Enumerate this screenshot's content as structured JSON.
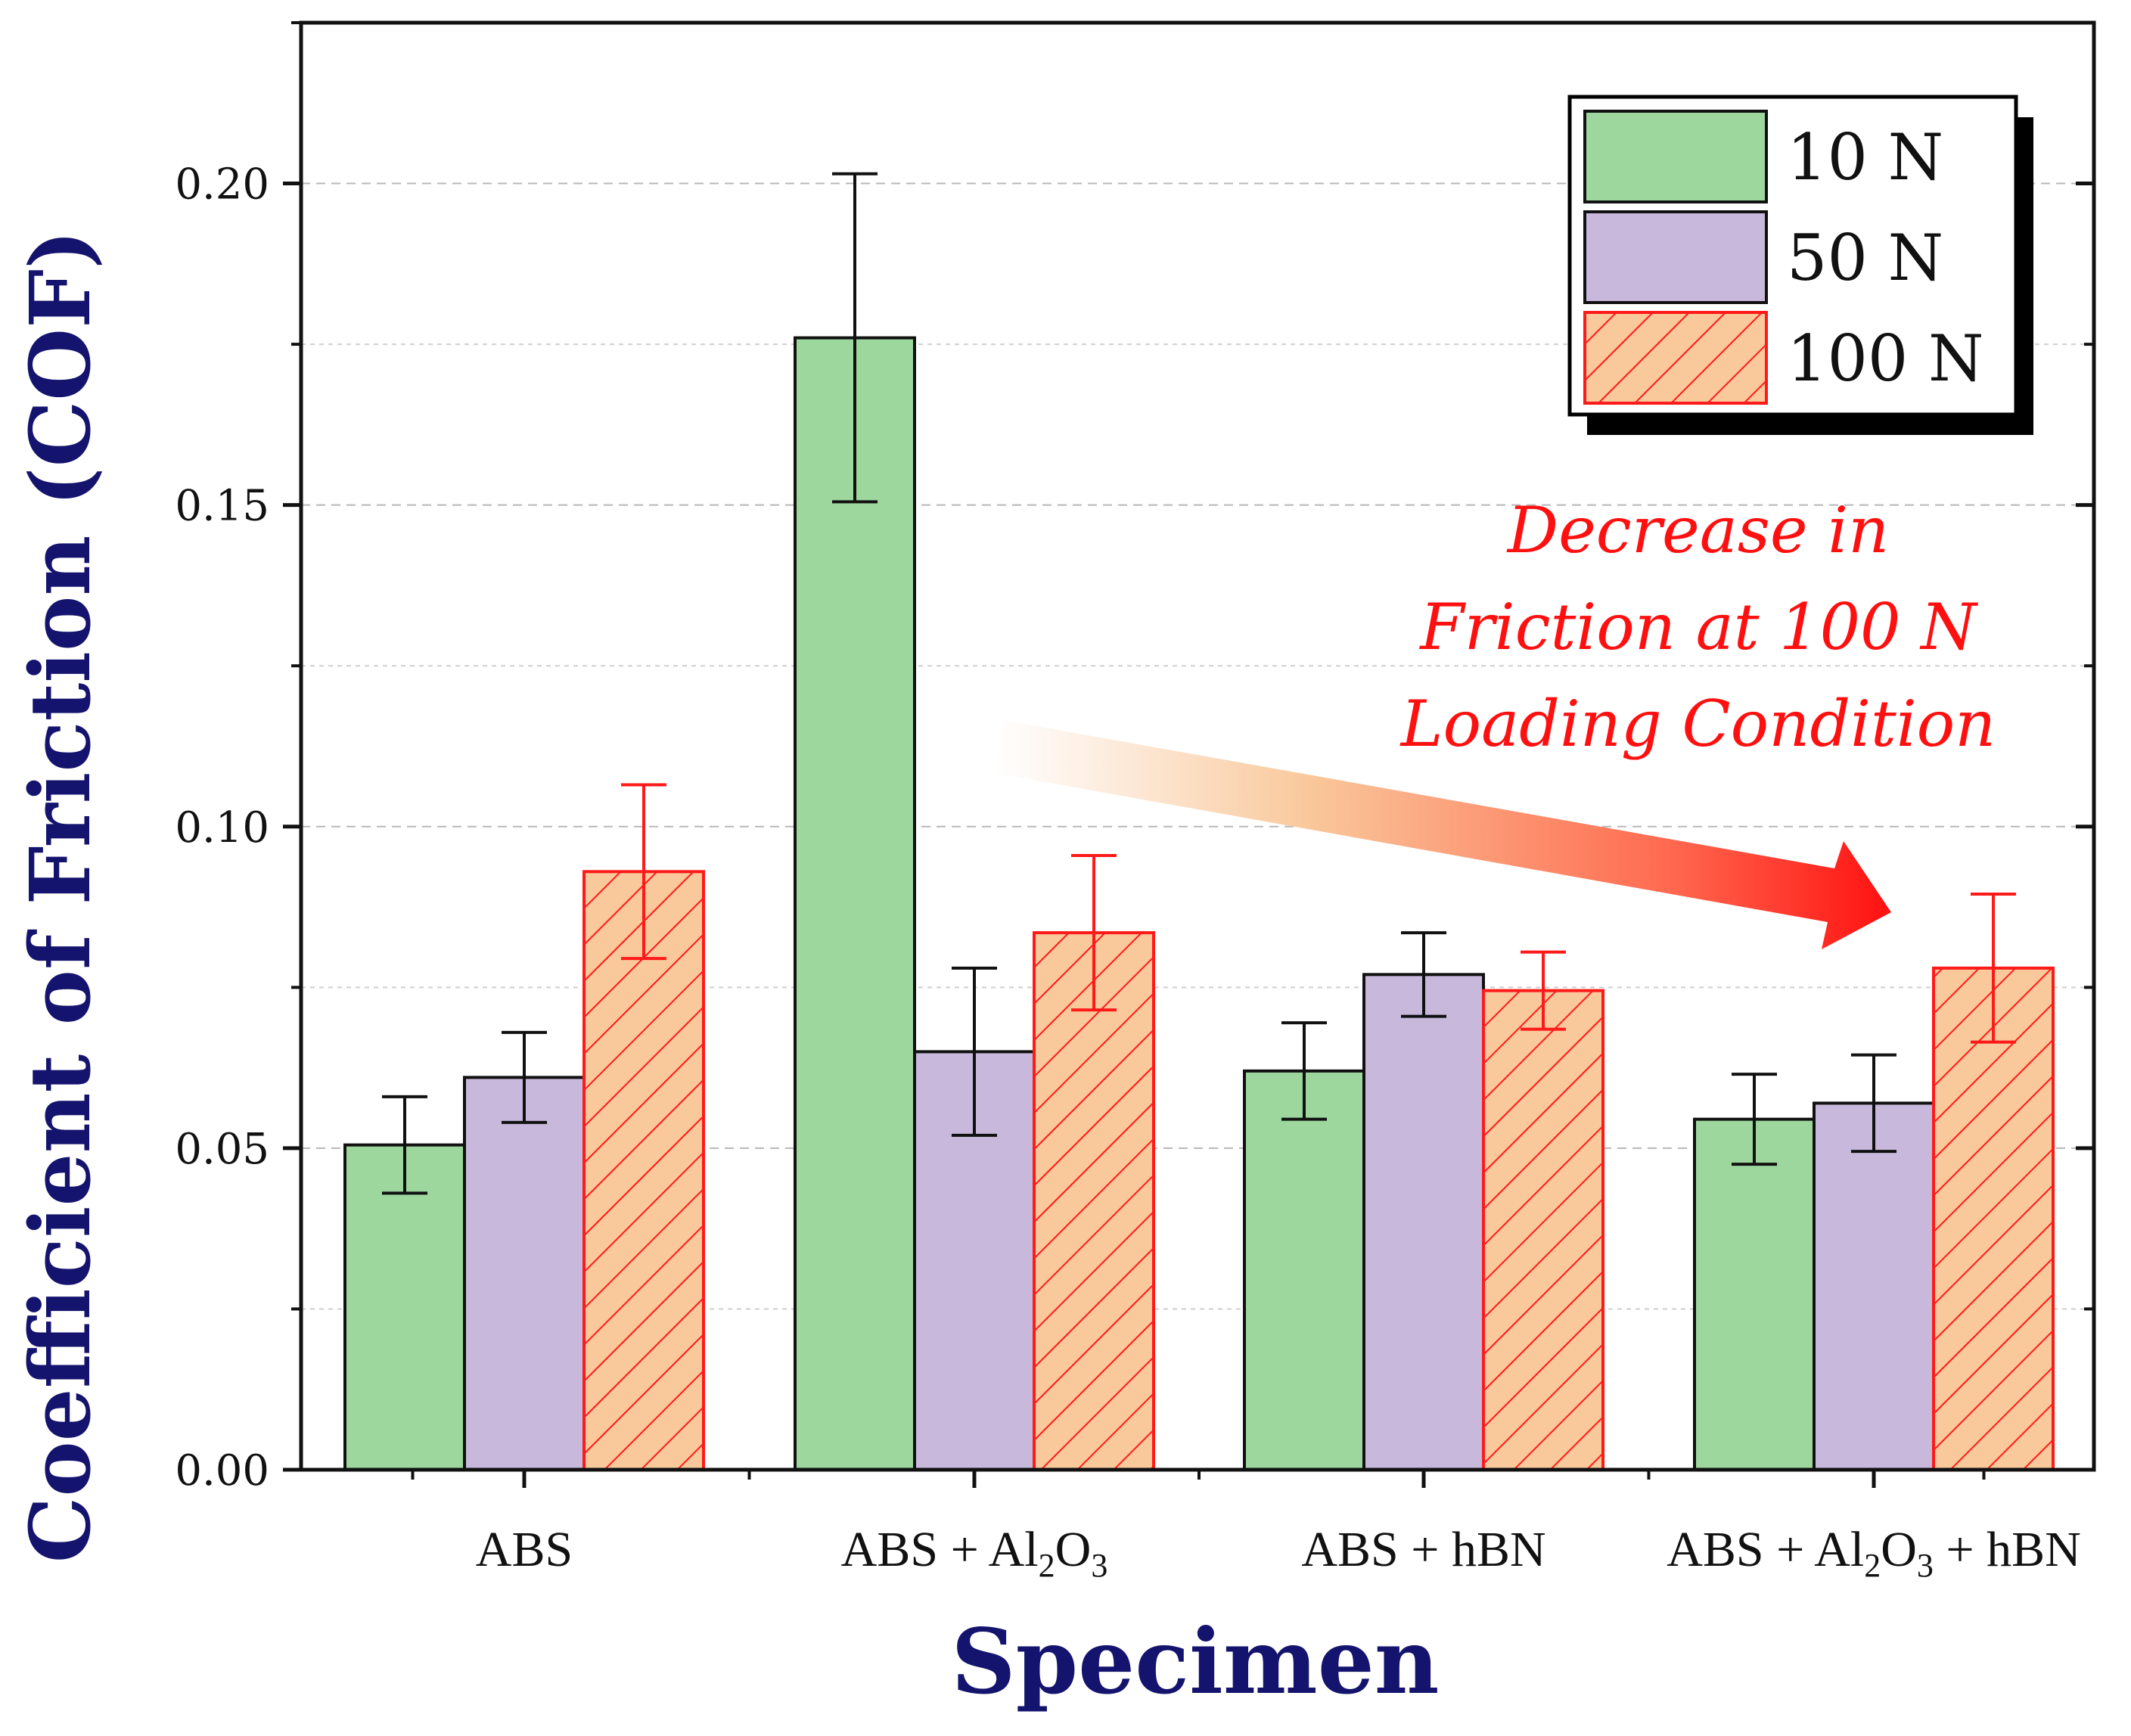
{
  "chart_data": {
    "type": "bar",
    "title": "",
    "xlabel": "Specimen",
    "ylabel": "Coefficient of Friction (COF)",
    "ylim": [
      0,
      0.225
    ],
    "yticks": [
      0.0,
      0.05,
      0.1,
      0.15,
      0.2
    ],
    "ytick_labels": [
      "0.00",
      "0.05",
      "0.10",
      "0.15",
      "0.20"
    ],
    "grid": true,
    "categories": [
      "ABS",
      "ABS + Al2O3",
      "ABS + hBN",
      "ABS + Al2O3 + hBN"
    ],
    "series": [
      {
        "name": "10 N",
        "values": [
          0.0505,
          0.176,
          0.062,
          0.0545
        ],
        "errors": [
          0.0075,
          0.0255,
          0.0075,
          0.007
        ],
        "color": "#9dd79d",
        "edge": "#111111",
        "hatch": false
      },
      {
        "name": "50 N",
        "values": [
          0.061,
          0.065,
          0.077,
          0.057
        ],
        "errors": [
          0.007,
          0.013,
          0.0065,
          0.0075
        ],
        "color": "#c8b8dc",
        "edge": "#111111",
        "hatch": false
      },
      {
        "name": "100 N",
        "values": [
          0.093,
          0.0835,
          0.0745,
          0.078
        ],
        "errors": [
          0.0135,
          0.012,
          0.006,
          0.0115
        ],
        "color": "#f9c89b",
        "edge": "#ff1a1a",
        "hatch": true
      }
    ],
    "legend_position": "top-right",
    "annotation": {
      "lines": [
        "Decrease in",
        "Friction at 100 N",
        "Loading Condition"
      ],
      "color": "#ff1010"
    }
  }
}
